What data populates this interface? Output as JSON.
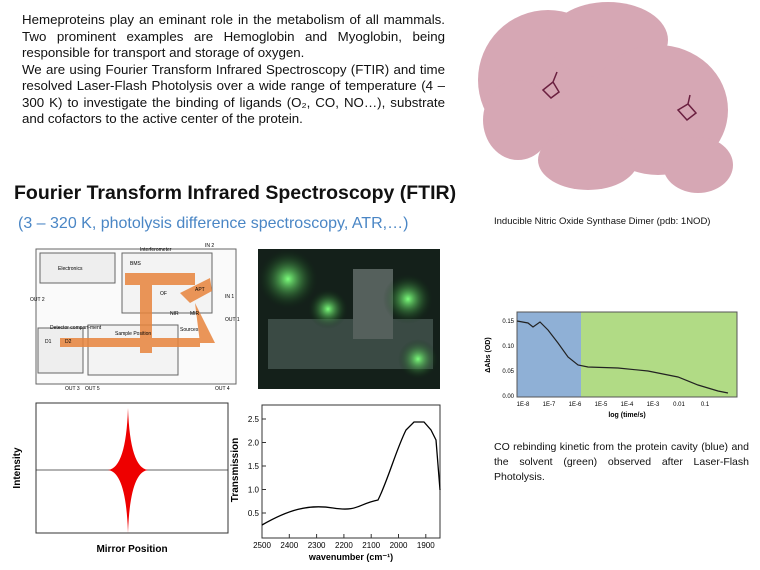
{
  "intro": {
    "paragraphs": [
      "Hemeproteins play an eminant role in the metabolism of all mammals. Two prominent examples are Hemoglobin and Myoglobin, being responsible for transport and storage of oxygen.",
      "We are using Fourier Transform Infrared Spectroscopy (FTIR) and time resolved Laser-Flash Photolysis over a wide range of temperature (4 – 300 K) to investigate the binding of ligands (O₂, CO, NO…), substrate and cofactors to the active center of the protein."
    ]
  },
  "heading": "Fourier Transform Infrared Spectroscopy (FTIR)",
  "subheading": "(3 – 320 K, photolysis difference spectroscopy, ATR,…)",
  "protein_figure": {
    "caption": "Inducible Nitric Oxide Synthase Dimer (pdb: 1NOD)"
  },
  "setup_figure": {
    "labels": [
      "Electronics",
      "Interferometer",
      "BMS",
      "OF",
      "APT",
      "NIR",
      "MIR",
      "Sources",
      "IN 2",
      "IN 1",
      "OUT 1",
      "OUT 2",
      "OUT 3",
      "OUT 4",
      "OUT 5",
      "Detector compart-ment",
      "Sample Position",
      "D1",
      "D2"
    ]
  },
  "interferogram": {
    "y_label": "Intensity",
    "x_label": "Mirror Position"
  },
  "spectrum": {
    "y_label": "Transmission",
    "x_label": "wavenumber (cm⁻¹)",
    "yticks": [
      "0.5",
      "1.0",
      "1.5",
      "2.0",
      "2.5"
    ],
    "xticks": [
      "2500",
      "2400",
      "2300",
      "2200",
      "2100",
      "2000",
      "1900"
    ]
  },
  "kinetics": {
    "y_label": "ΔAbs (OD)",
    "x_label": "log (time/s)",
    "yticks": [
      "0.00",
      "0.05",
      "0.10",
      "0.15"
    ],
    "xticks": [
      "1E-8",
      "1E-7",
      "1E-6",
      "1E-5",
      "1E-4",
      "1E-3",
      "0.01",
      "0.1"
    ],
    "caption": "CO rebinding kinetic from the protein cavity (blue) and the solvent (green) observed after Laser-Flash Photolysis."
  }
}
